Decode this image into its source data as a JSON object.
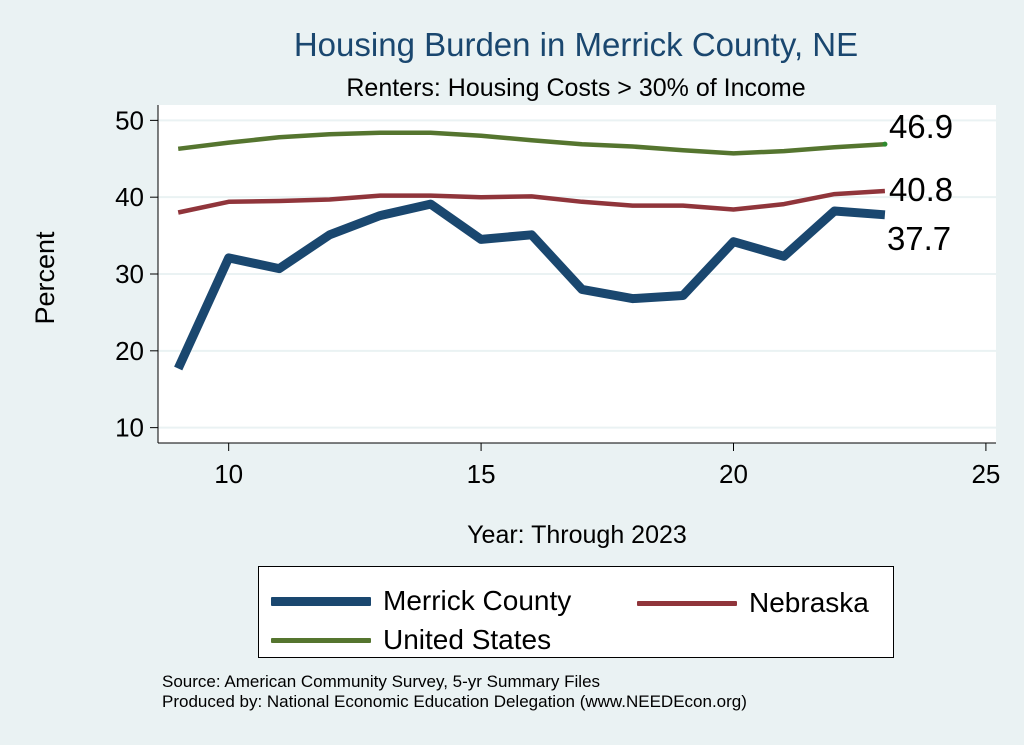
{
  "chart_data": {
    "type": "line",
    "title": "Housing Burden in Merrick County, NE",
    "subtitle": "Renters: Housing Costs > 30% of Income",
    "xlabel": "Year: Through 2023",
    "ylabel": "Percent",
    "xlim": [
      8.6,
      25.2
    ],
    "ylim": [
      8,
      52
    ],
    "x_ticks": [
      10,
      15,
      20,
      25
    ],
    "y_ticks": [
      10,
      20,
      30,
      40,
      50
    ],
    "grid": true,
    "legend_position": "bottom",
    "series": [
      {
        "name": "Merrick County",
        "color": "#1A476F",
        "x": [
          9,
          10,
          11,
          12,
          13,
          14,
          15,
          16,
          17,
          18,
          19,
          20,
          21,
          22,
          23
        ],
        "values": [
          17.7,
          32.1,
          30.7,
          35.1,
          37.6,
          39.1,
          34.5,
          35.1,
          28.0,
          26.8,
          27.2,
          34.2,
          32.3,
          38.2,
          37.7
        ],
        "end_label": "37.7"
      },
      {
        "name": "Nebraska",
        "color": "#90353B",
        "x": [
          9,
          10,
          11,
          12,
          13,
          14,
          15,
          16,
          17,
          18,
          19,
          20,
          21,
          22,
          23
        ],
        "values": [
          38.0,
          39.4,
          39.5,
          39.7,
          40.2,
          40.2,
          40.0,
          40.1,
          39.4,
          38.9,
          38.9,
          38.4,
          39.1,
          40.4,
          40.8
        ],
        "end_label": "40.8"
      },
      {
        "name": "United States",
        "color": "#55752F",
        "x": [
          9,
          10,
          11,
          12,
          13,
          14,
          15,
          16,
          17,
          18,
          19,
          20,
          21,
          22,
          23
        ],
        "values": [
          46.3,
          47.1,
          47.8,
          48.2,
          48.4,
          48.4,
          48.0,
          47.4,
          46.9,
          46.6,
          46.1,
          45.7,
          46.0,
          46.5,
          46.9
        ],
        "end_label": "46.9"
      }
    ]
  },
  "notes": [
    "Source: American Community Survey, 5-yr Summary Files",
    "Produced by: National Economic Education Delegation (www.NEEDEcon.org)"
  ]
}
